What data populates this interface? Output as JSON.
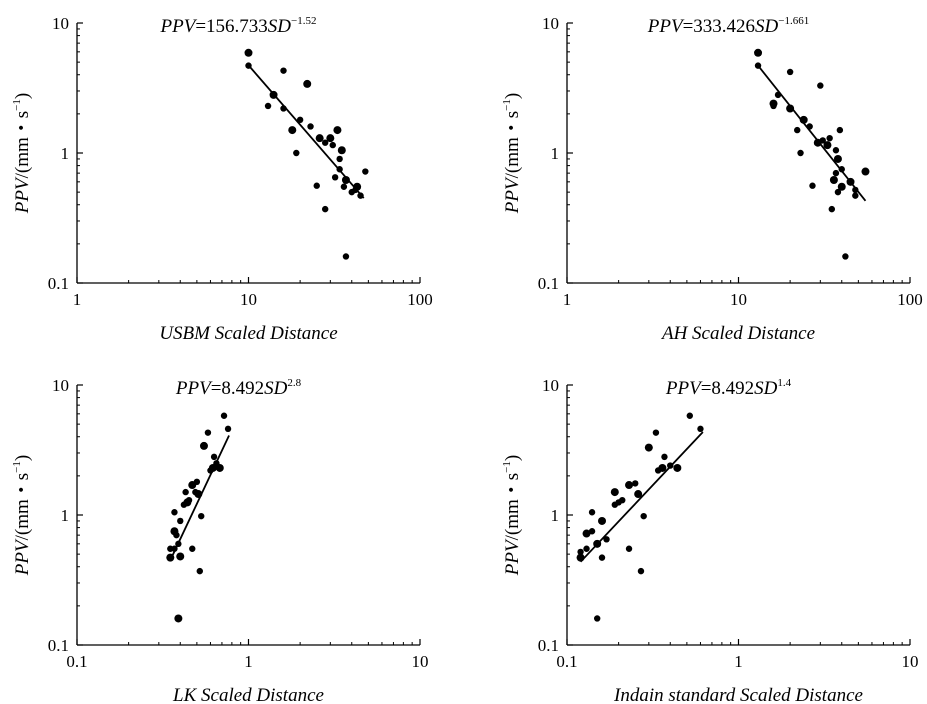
{
  "chart_data": [
    {
      "type": "scatter",
      "xscale": "log",
      "yscale": "log",
      "xlim": [
        1,
        100
      ],
      "ylim": [
        0.1,
        10
      ],
      "xticks": [
        "1",
        "10",
        "100"
      ],
      "yticks": [
        "0.1",
        "1",
        "10"
      ],
      "xlabel": "USBM Scaled Distance",
      "ylabel": {
        "var": "PPV",
        "unit_base": "/(mm・s",
        "unit_sup": "−1",
        "close": ")"
      },
      "equation": {
        "lhs": "PPV",
        "coef": "=156.733",
        "var": "SD",
        "exp": "−1.52"
      },
      "fit": {
        "a": 156.733,
        "b": -1.52,
        "x_range": [
          10,
          47
        ]
      },
      "points": [
        [
          10,
          5.9
        ],
        [
          10,
          4.7
        ],
        [
          13,
          2.3
        ],
        [
          14,
          2.8
        ],
        [
          16,
          4.3
        ],
        [
          16,
          2.2
        ],
        [
          18,
          1.5
        ],
        [
          19,
          1.0
        ],
        [
          20,
          1.8
        ],
        [
          22,
          3.4
        ],
        [
          23,
          1.6
        ],
        [
          25,
          0.56
        ],
        [
          26,
          1.3
        ],
        [
          28,
          0.37
        ],
        [
          28,
          1.2
        ],
        [
          30,
          1.3
        ],
        [
          31,
          1.15
        ],
        [
          32,
          0.65
        ],
        [
          33,
          1.5
        ],
        [
          34,
          0.9
        ],
        [
          34,
          0.75
        ],
        [
          35,
          1.05
        ],
        [
          36,
          0.55
        ],
        [
          37,
          0.16
        ],
        [
          37,
          0.62
        ],
        [
          40,
          0.5
        ],
        [
          42,
          0.52
        ],
        [
          43,
          0.55
        ],
        [
          45,
          0.47
        ],
        [
          48,
          0.72
        ]
      ]
    },
    {
      "type": "scatter",
      "xscale": "log",
      "yscale": "log",
      "xlim": [
        1,
        100
      ],
      "ylim": [
        0.1,
        10
      ],
      "xticks": [
        "1",
        "10",
        "100"
      ],
      "yticks": [
        "0.1",
        "1",
        "10"
      ],
      "xlabel": "AH Scaled Distance",
      "ylabel": {
        "var": "PPV",
        "unit_base": "/(mm・s",
        "unit_sup": "−1",
        "close": ")"
      },
      "equation": {
        "lhs": "PPV",
        "coef": "=333.426",
        "var": "SD",
        "exp": "−1.661"
      },
      "fit": {
        "a": 333.426,
        "b": -1.661,
        "x_range": [
          13,
          55
        ]
      },
      "points": [
        [
          13,
          5.9
        ],
        [
          13,
          4.7
        ],
        [
          16,
          2.3
        ],
        [
          16,
          2.4
        ],
        [
          17,
          2.8
        ],
        [
          20,
          4.2
        ],
        [
          20,
          2.2
        ],
        [
          22,
          1.5
        ],
        [
          23,
          1.0
        ],
        [
          24,
          1.8
        ],
        [
          26,
          1.6
        ],
        [
          27,
          0.56
        ],
        [
          29,
          1.2
        ],
        [
          30,
          3.3
        ],
        [
          31,
          1.25
        ],
        [
          33,
          1.15
        ],
        [
          34,
          1.3
        ],
        [
          35,
          0.37
        ],
        [
          36,
          0.62
        ],
        [
          37,
          0.7
        ],
        [
          37,
          1.05
        ],
        [
          38,
          0.9
        ],
        [
          38,
          0.5
        ],
        [
          39,
          1.5
        ],
        [
          40,
          0.55
        ],
        [
          40,
          0.75
        ],
        [
          42,
          0.16
        ],
        [
          45,
          0.6
        ],
        [
          48,
          0.52
        ],
        [
          48,
          0.47
        ],
        [
          55,
          0.72
        ]
      ]
    },
    {
      "type": "scatter",
      "xscale": "log",
      "yscale": "log",
      "xlim": [
        0.1,
        10
      ],
      "ylim": [
        0.1,
        10
      ],
      "xticks": [
        "0.1",
        "1",
        "10"
      ],
      "yticks": [
        "0.1",
        "1",
        "10"
      ],
      "xlabel": "LK Scaled Distance",
      "ylabel": {
        "var": "PPV",
        "unit_base": "/(mm・s",
        "unit_sup": "−1",
        "close": ")"
      },
      "equation": {
        "lhs": "PPV",
        "coef": "=8.492",
        "var": "SD",
        "exp": "2.8"
      },
      "fit": {
        "a": 8.492,
        "b": 2.8,
        "x_range": [
          0.35,
          0.77
        ]
      },
      "points": [
        [
          0.35,
          0.47
        ],
        [
          0.35,
          0.55
        ],
        [
          0.37,
          0.55
        ],
        [
          0.37,
          0.75
        ],
        [
          0.37,
          1.05
        ],
        [
          0.38,
          0.7
        ],
        [
          0.39,
          0.16
        ],
        [
          0.39,
          0.6
        ],
        [
          0.4,
          0.9
        ],
        [
          0.4,
          0.48
        ],
        [
          0.42,
          1.2
        ],
        [
          0.43,
          1.5
        ],
        [
          0.44,
          1.25
        ],
        [
          0.45,
          1.3
        ],
        [
          0.47,
          0.55
        ],
        [
          0.47,
          1.7
        ],
        [
          0.49,
          1.5
        ],
        [
          0.5,
          1.8
        ],
        [
          0.51,
          1.45
        ],
        [
          0.52,
          0.37
        ],
        [
          0.53,
          0.98
        ],
        [
          0.55,
          3.4
        ],
        [
          0.58,
          4.3
        ],
        [
          0.6,
          2.2
        ],
        [
          0.62,
          2.3
        ],
        [
          0.63,
          2.8
        ],
        [
          0.65,
          2.5
        ],
        [
          0.68,
          2.3
        ],
        [
          0.72,
          5.8
        ],
        [
          0.76,
          4.6
        ]
      ]
    },
    {
      "type": "scatter",
      "xscale": "log",
      "yscale": "log",
      "xlim": [
        0.1,
        10
      ],
      "ylim": [
        0.1,
        10
      ],
      "xticks": [
        "0.1",
        "1",
        "10"
      ],
      "yticks": [
        "0.1",
        "1",
        "10"
      ],
      "xlabel": "Indain standard Scaled Distance",
      "ylabel": {
        "var": "PPV",
        "unit_base": "/(mm・s",
        "unit_sup": "−1",
        "close": ")"
      },
      "equation": {
        "lhs": "PPV",
        "coef": "=8.492",
        "var": "SD",
        "exp": "1.4"
      },
      "fit": {
        "a": 8.492,
        "b": 1.4,
        "x_range": [
          0.12,
          0.62
        ]
      },
      "points": [
        [
          0.12,
          0.47
        ],
        [
          0.12,
          0.52
        ],
        [
          0.13,
          0.55
        ],
        [
          0.13,
          0.72
        ],
        [
          0.14,
          1.05
        ],
        [
          0.14,
          0.75
        ],
        [
          0.15,
          0.6
        ],
        [
          0.15,
          0.16
        ],
        [
          0.16,
          0.47
        ],
        [
          0.16,
          0.9
        ],
        [
          0.17,
          0.65
        ],
        [
          0.19,
          1.2
        ],
        [
          0.19,
          1.5
        ],
        [
          0.2,
          1.25
        ],
        [
          0.21,
          1.3
        ],
        [
          0.23,
          1.7
        ],
        [
          0.23,
          0.55
        ],
        [
          0.25,
          1.75
        ],
        [
          0.26,
          1.45
        ],
        [
          0.27,
          0.37
        ],
        [
          0.28,
          0.98
        ],
        [
          0.3,
          3.3
        ],
        [
          0.33,
          4.3
        ],
        [
          0.34,
          2.2
        ],
        [
          0.36,
          2.3
        ],
        [
          0.37,
          2.8
        ],
        [
          0.4,
          2.4
        ],
        [
          0.44,
          2.3
        ],
        [
          0.52,
          5.8
        ],
        [
          0.6,
          4.6
        ]
      ]
    }
  ]
}
